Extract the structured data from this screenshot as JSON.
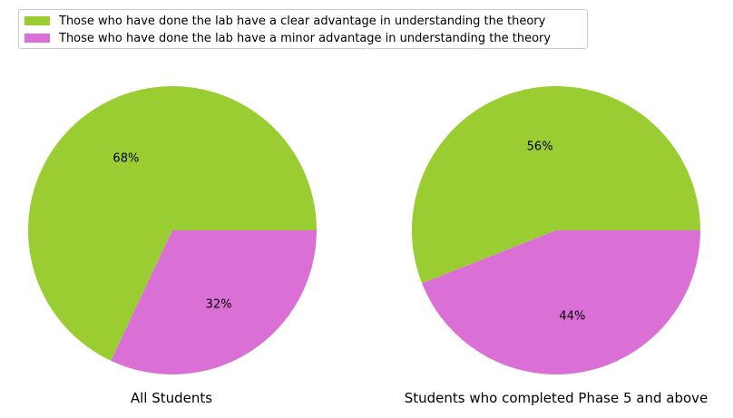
{
  "legend": {
    "entries": [
      {
        "label": "Those who have done the lab have a clear advantage in understanding the theory",
        "color": "#9acd32"
      },
      {
        "label": "Those who have done the lab have a minor advantage in understanding the theory",
        "color": "#da70d6"
      }
    ],
    "placement": "top-left"
  },
  "chart_data": [
    {
      "type": "pie",
      "title": "All Students",
      "categories": [
        "Those who have done the lab have a clear advantage in understanding the theory",
        "Those who have done the lab have a minor advantage in understanding the theory"
      ],
      "values": [
        68,
        32
      ],
      "labels": [
        "68%",
        "32%"
      ],
      "colors": [
        "#9acd32",
        "#da70d6"
      ]
    },
    {
      "type": "pie",
      "title": "Students who completed Phase 5 and above",
      "categories": [
        "Those who have done the lab have a clear advantage in understanding the theory",
        "Those who have done the lab have a minor advantage in understanding the theory"
      ],
      "values": [
        56,
        44
      ],
      "labels": [
        "56%",
        "44%"
      ],
      "colors": [
        "#9acd32",
        "#da70d6"
      ]
    }
  ]
}
